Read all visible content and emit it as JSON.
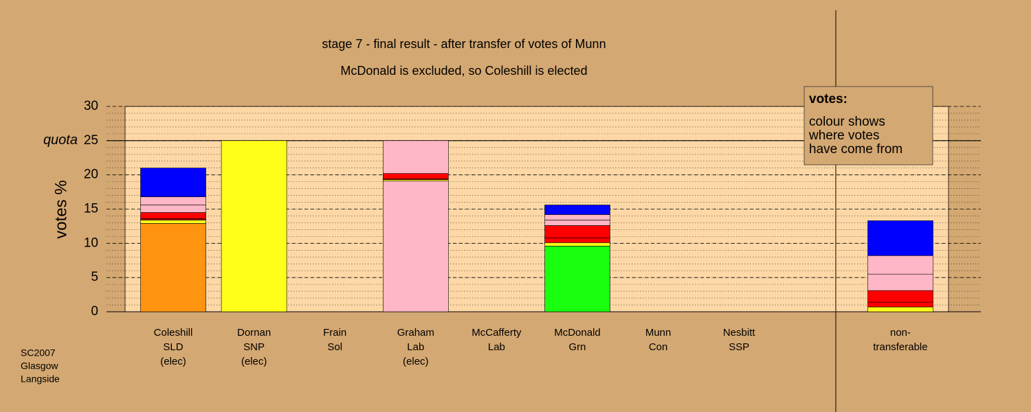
{
  "chart_data": {
    "type": "stacked-bar",
    "title": "stage 7 - final result - after transfer of votes of Munn",
    "subtitle": "McDonald is excluded, so Coleshill is elected",
    "y_label": "votes %",
    "ylim": [
      0,
      30
    ],
    "yticks": [
      0,
      5,
      10,
      15,
      20,
      25,
      30
    ],
    "quota": 25,
    "quota_label": "quota",
    "footnote": [
      "SC2007",
      "Glasgow",
      "Langside"
    ],
    "legend": {
      "title": "votes:",
      "lines": [
        "colour shows",
        "where votes",
        "have come from"
      ]
    },
    "bars": [
      {
        "label": [
          "Coleshill",
          "SLD",
          "(elec)"
        ],
        "segments": [
          {
            "color": "#ff9410",
            "value": 12.9
          },
          {
            "color": "#ffff1a",
            "value": 0.5
          },
          {
            "color": "#b01010",
            "value": 0.2
          },
          {
            "color": "#ff0000",
            "value": 0.9
          },
          {
            "color": "#ffb6c6",
            "value": 1.1
          },
          {
            "color": "#ffb6c6",
            "value": 1.2
          },
          {
            "color": "#0000ff",
            "value": 4.2
          }
        ]
      },
      {
        "label": [
          "Dornan",
          "SNP",
          "(elec)"
        ],
        "segments": [
          {
            "color": "#ffff1a",
            "value": 25
          }
        ]
      },
      {
        "label": [
          "Frain",
          "Sol"
        ],
        "segments": []
      },
      {
        "label": [
          "Graham",
          "Lab",
          "(elec)"
        ],
        "segments": [
          {
            "color": "#ffb6c6",
            "value": 19.1
          },
          {
            "color": "#ffff1a",
            "value": 0.2
          },
          {
            "color": "#b01010",
            "value": 0.1
          },
          {
            "color": "#ff0000",
            "value": 0.8
          },
          {
            "color": "#ffb6c6",
            "value": 4.8
          }
        ]
      },
      {
        "label": [
          "McCafferty",
          "Lab"
        ],
        "segments": []
      },
      {
        "label": [
          "McDonald",
          "Grn"
        ],
        "segments": [
          {
            "color": "#1aff10",
            "value": 9.6
          },
          {
            "color": "#ffff1a",
            "value": 0.5
          },
          {
            "color": "#ff0000",
            "value": 0.7
          },
          {
            "color": "#ff0000",
            "value": 1.8
          },
          {
            "color": "#ffb6c6",
            "value": 0.8
          },
          {
            "color": "#ffb6c6",
            "value": 0.8
          },
          {
            "color": "#0000ff",
            "value": 1.4
          }
        ]
      },
      {
        "label": [
          "Munn",
          "Con"
        ],
        "segments": []
      },
      {
        "label": [
          "Nesbitt",
          "SSP"
        ],
        "segments": []
      }
    ],
    "extra_bar": {
      "label": [
        "non-",
        "transferable"
      ],
      "segments": [
        {
          "color": "#ffff1a",
          "value": 0.7
        },
        {
          "color": "#ff0000",
          "value": 0.7
        },
        {
          "color": "#ff0000",
          "value": 1.7
        },
        {
          "color": "#ffb6c6",
          "value": 2.4
        },
        {
          "color": "#ffb6c6",
          "value": 2.7
        },
        {
          "color": "#0000ff",
          "value": 5.1
        }
      ]
    }
  }
}
